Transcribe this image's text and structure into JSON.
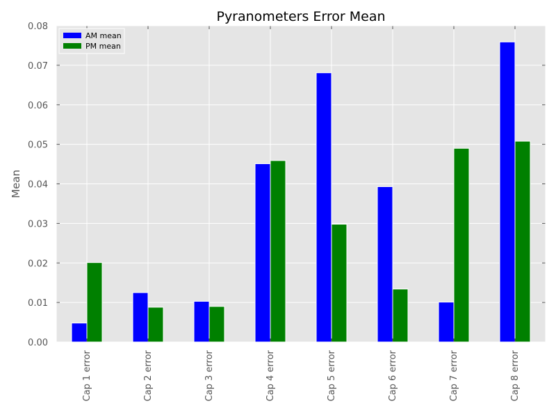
{
  "chart_data": {
    "type": "bar",
    "title": "Pyranometers Error Mean",
    "xlabel": "",
    "ylabel": "Mean",
    "categories": [
      "Cap 1 error",
      "Cap 2 error",
      "Cap 3 error",
      "Cap 4 error",
      "Cap 5 error",
      "Cap 6 error",
      "Cap 7 error",
      "Cap 8 error"
    ],
    "series": [
      {
        "name": "AM mean",
        "color": "#0000ff",
        "values": [
          0.0048,
          0.0125,
          0.0103,
          0.0451,
          0.0681,
          0.0393,
          0.0101,
          0.0759
        ]
      },
      {
        "name": "PM mean",
        "color": "#008000",
        "values": [
          0.0201,
          0.0088,
          0.009,
          0.0459,
          0.0298,
          0.0134,
          0.049,
          0.0508
        ]
      }
    ],
    "ylim": [
      0,
      0.08
    ],
    "yticks": [
      "0.00",
      "0.01",
      "0.02",
      "0.03",
      "0.04",
      "0.05",
      "0.06",
      "0.07",
      "0.08"
    ],
    "grid": true,
    "legend_position": "top-left",
    "plot_background": "#e5e5e5",
    "grid_color": "#ffffff"
  }
}
